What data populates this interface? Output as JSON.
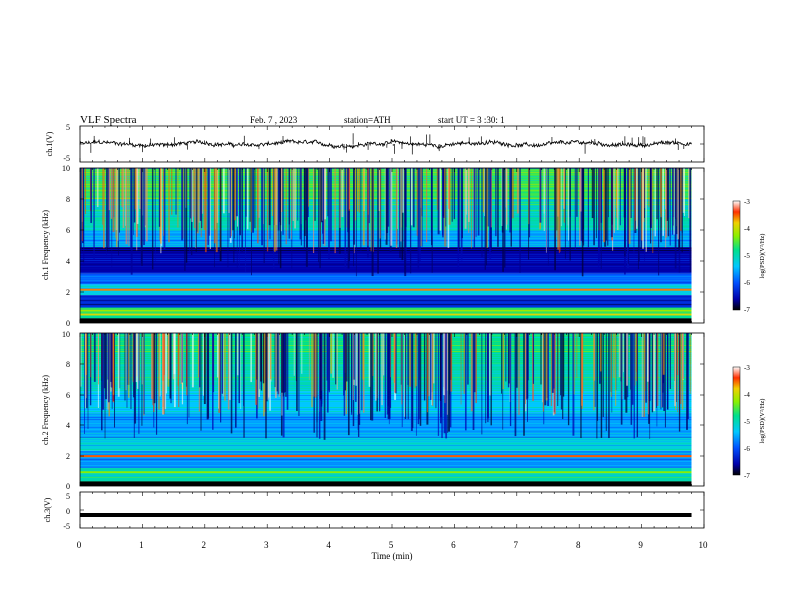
{
  "header": {
    "title": "VLF Spectra",
    "date": "Feb. 7 , 2023",
    "station": "station=ATH",
    "start": "start UT = 3 :30: 1"
  },
  "colors": {
    "waveform": "#000000",
    "colormap": [
      "#000000",
      "#0000aa",
      "#0050ff",
      "#00c8ff",
      "#00e08c",
      "#8cf000",
      "#f0d000",
      "#ff3000",
      "#ffffff"
    ]
  },
  "chart_data": [
    {
      "type": "line",
      "panel": "ch.1",
      "ylabel": "ch.1(V)",
      "ylim": [
        -5,
        5
      ],
      "yticks": [
        "5",
        "-5"
      ],
      "xlim": [
        0,
        10
      ],
      "series": [
        {
          "x": [
            0,
            9.8
          ],
          "y": [
            0,
            0
          ]
        }
      ],
      "annotations": [
        "noisy waveform near 0 V with spikes"
      ]
    },
    {
      "type": "heatmap",
      "panel": "ch.1",
      "ylabel": "ch.1 Frequency (kHz)",
      "ylim": [
        0,
        10
      ],
      "yticks": [
        "0",
        "2",
        "4",
        "6",
        "8",
        "10"
      ],
      "xlim": [
        0,
        10
      ],
      "color_range": [
        -7,
        -3
      ],
      "colorbar_ticks": [
        "-3",
        "-4",
        "-5",
        "-6",
        "-7"
      ],
      "colorbar_label": "log(PSD)(V²/Hz)",
      "bands": [
        {
          "f_low": 0.0,
          "f_high": 0.3,
          "level": -7
        },
        {
          "f_low": 0.3,
          "f_high": 1.0,
          "level": -4.8
        },
        {
          "f_low": 1.0,
          "f_high": 1.8,
          "level": -6.3
        },
        {
          "f_low": 1.8,
          "f_high": 2.5,
          "level": -5.3
        },
        {
          "f_low": 2.5,
          "f_high": 3.2,
          "level": -5.9
        },
        {
          "f_low": 3.2,
          "f_high": 4.9,
          "level": -6.6
        },
        {
          "f_low": 4.9,
          "f_high": 6.0,
          "level": -5.6
        },
        {
          "f_low": 6.0,
          "f_high": 8.0,
          "level": -5.0
        },
        {
          "f_low": 8.0,
          "f_high": 10.0,
          "level": -4.6
        }
      ],
      "lines": [
        {
          "f": 2.15,
          "level": -3.6
        },
        {
          "f": 0.55,
          "level": -3.9
        },
        {
          "f": 0.8,
          "level": -4.2
        }
      ]
    },
    {
      "type": "heatmap",
      "panel": "ch.2",
      "ylabel": "ch.2 Frequency (kHz)",
      "ylim": [
        0,
        10
      ],
      "yticks": [
        "0",
        "2",
        "4",
        "6",
        "8",
        "10"
      ],
      "xlim": [
        0,
        10
      ],
      "color_range": [
        -7,
        -3
      ],
      "colorbar_ticks": [
        "-3",
        "-4",
        "-5",
        "-6",
        "-7"
      ],
      "colorbar_label": "log(PSD)(V²/Hz)",
      "bands": [
        {
          "f_low": 0.0,
          "f_high": 0.3,
          "level": -7
        },
        {
          "f_low": 0.3,
          "f_high": 1.2,
          "level": -5.0
        },
        {
          "f_low": 1.2,
          "f_high": 2.3,
          "level": -5.7
        },
        {
          "f_low": 2.3,
          "f_high": 3.2,
          "level": -5.2
        },
        {
          "f_low": 3.2,
          "f_high": 4.8,
          "level": -5.6
        },
        {
          "f_low": 4.8,
          "f_high": 6.2,
          "level": -5.4
        },
        {
          "f_low": 6.2,
          "f_high": 8.0,
          "level": -5.0
        },
        {
          "f_low": 8.0,
          "f_high": 10.0,
          "level": -4.8
        }
      ],
      "lines": [
        {
          "f": 1.95,
          "level": -3.5
        },
        {
          "f": 0.9,
          "level": -4.3
        }
      ]
    },
    {
      "type": "line",
      "panel": "ch.3",
      "ylabel": "ch.3(V)",
      "ylim": [
        -5,
        5
      ],
      "yticks": [
        "5",
        "0",
        "-5"
      ],
      "xlim": [
        0,
        10
      ],
      "series": [
        {
          "x": [
            0,
            9.8
          ],
          "y": [
            -1.4,
            -1.4
          ]
        }
      ]
    }
  ],
  "xaxis": {
    "label": "Time (min)",
    "ticks": [
      "0",
      "1",
      "2",
      "3",
      "4",
      "5",
      "6",
      "7",
      "8",
      "9",
      "10"
    ]
  }
}
